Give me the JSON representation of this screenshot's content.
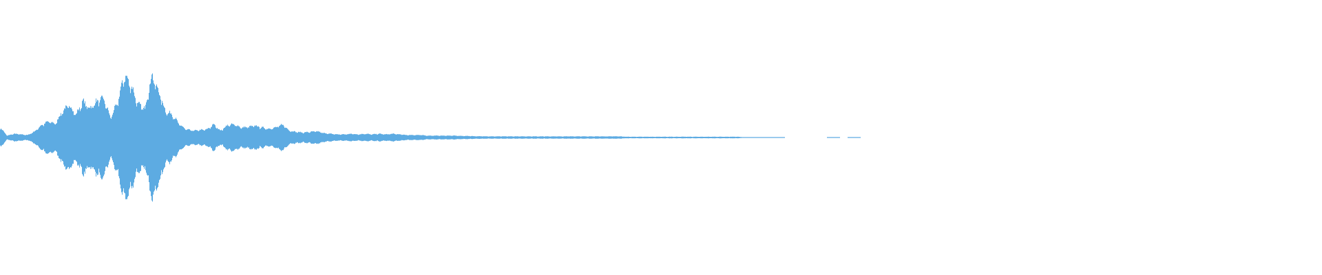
{
  "waveform": {
    "color": "#5dabe2",
    "background": "#ffffff",
    "peaks": [
      0.16,
      0.03,
      0.06,
      0.05,
      0.04,
      0.1,
      0.2,
      0.26,
      0.22,
      0.42,
      0.52,
      0.37,
      0.58,
      0.47,
      0.58,
      0.63,
      0.32,
      0.55,
      1,
      0.84,
      0.53,
      0.47,
      1,
      0.74,
      0.42,
      0.37,
      0.21,
      0.13,
      0.11,
      0.12,
      0.13,
      0.21,
      0.11,
      0.2,
      0.21,
      0.16,
      0.17,
      0.19,
      0.16,
      0.14,
      0.16,
      0.21,
      0.11,
      0.09,
      0.08,
      0.09,
      0.1,
      0.07,
      0.06,
      0.05,
      0.05,
      0.06,
      0.05,
      0.06,
      0.05,
      0.06,
      0.05,
      0.06,
      0.05,
      0.04,
      0.04,
      0.04,
      0.03,
      0.03,
      0.03,
      0.03,
      0.03,
      0.025,
      0.025,
      0.02,
      0.02,
      0.018,
      0.018,
      0.018,
      0.018,
      0.018,
      0.018,
      0.018,
      0.018,
      0.018,
      0.018,
      0.018,
      0.018,
      0.018,
      0.018,
      0.018,
      0.018,
      0.018,
      0.018,
      0.018,
      0.018,
      0.012,
      0.012,
      0.012,
      0.012,
      0.012,
      0.012,
      0.012,
      0.012,
      0.012,
      0.012,
      0.012,
      0.012,
      0.012,
      0.012,
      0.012,
      0.012,
      0.012,
      0.006,
      0.006,
      0.006,
      0.006,
      0.006,
      0.006,
      0,
      0,
      0,
      0,
      0,
      0,
      0,
      0.005,
      0,
      0,
      0.005,
      0,
      0,
      0,
      0,
      0,
      0,
      0,
      0,
      0,
      0,
      0,
      0,
      0,
      0,
      0,
      0,
      0,
      0,
      0,
      0,
      0,
      0,
      0,
      0,
      0,
      0,
      0,
      0,
      0,
      0,
      0,
      0,
      0,
      0,
      0,
      0,
      0,
      0,
      0,
      0,
      0,
      0,
      0,
      0,
      0,
      0,
      0,
      0,
      0,
      0,
      0,
      0,
      0,
      0,
      0,
      0,
      0,
      0,
      0,
      0,
      0,
      0,
      0,
      0,
      0,
      0,
      0
    ]
  }
}
